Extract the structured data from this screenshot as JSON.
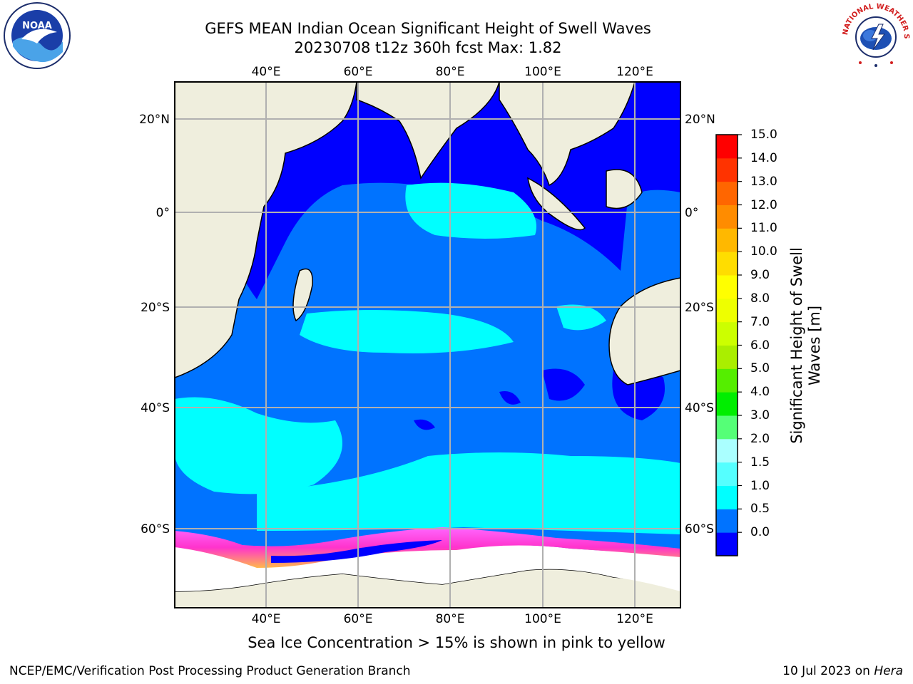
{
  "title": {
    "line1": "GEFS MEAN Indian Ocean Significant Height of Swell Waves",
    "line2": "20230708 t12z 360h fcst   Max: 1.82"
  },
  "logos": {
    "left": "noaa-logo",
    "right": "nws-logo",
    "noaa_text": "NOAA",
    "nws_text": "NATIONAL WEATHER SERVICE"
  },
  "map": {
    "lon_ticks": [
      "40°E",
      "60°E",
      "80°E",
      "100°E",
      "120°E"
    ],
    "lat_ticks": [
      "20°N",
      "0°",
      "20°S",
      "40°S",
      "60°S"
    ],
    "ocean_colors": {
      "dark_blue": "#0000ff",
      "mid_blue": "#0073ff",
      "cyan": "#00ffff",
      "land": "#efeedd",
      "ice": "#ffffff",
      "ice_pink": "#ff66ff",
      "ice_orange": "#ffb84d"
    }
  },
  "colorbar": {
    "label": "Significant Height of Swell Waves [m]",
    "ticks": [
      "15.0",
      "14.0",
      "13.0",
      "12.0",
      "11.0",
      "10.0",
      "9.0",
      "8.0",
      "7.0",
      "6.0",
      "5.0",
      "4.0",
      "3.0",
      "2.0",
      "1.5",
      "1.0",
      "0.5",
      "0.0"
    ],
    "colors": [
      "#0000ff",
      "#0073ff",
      "#00ffff",
      "#55ffff",
      "#aaffff",
      "#55ff77",
      "#00ee00",
      "#55ee00",
      "#aaee00",
      "#ccff00",
      "#eeff00",
      "#ffff00",
      "#ffdd00",
      "#ffb800",
      "#ff8c00",
      "#ff6600",
      "#ff3300",
      "#ff0000"
    ]
  },
  "ice_note": "Sea Ice Concentration > 15% is shown in pink to yellow",
  "footer": {
    "left": "NCEP/EMC/Verification Post Processing Product Generation Branch",
    "right_date": "10 Jul 2023 on ",
    "right_host": "Hera"
  }
}
